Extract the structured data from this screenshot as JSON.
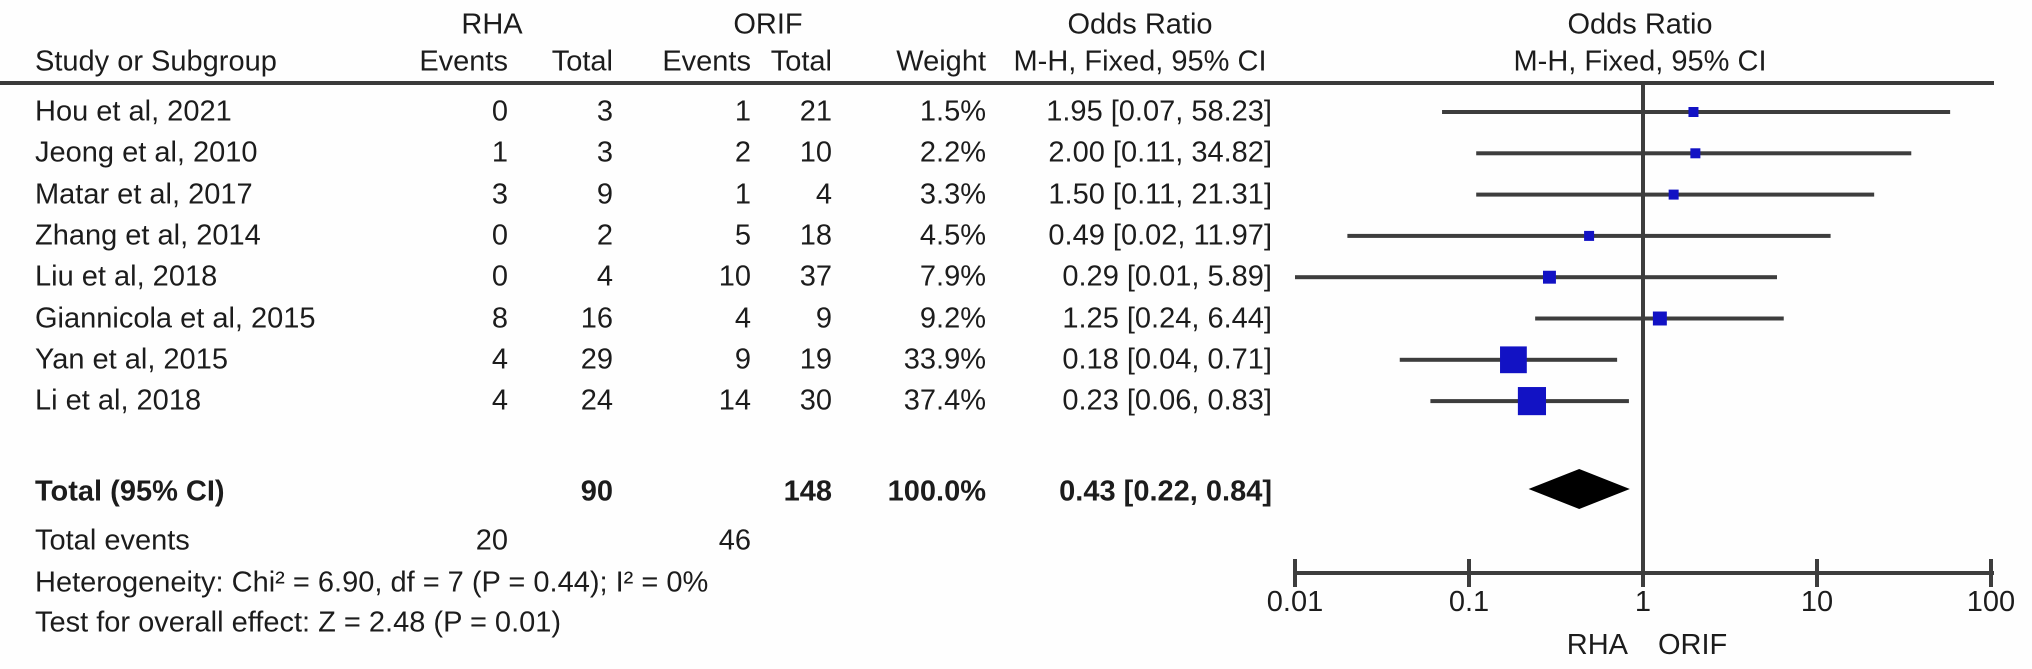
{
  "table": {
    "header": {
      "group1": "RHA",
      "group2": "ORIF",
      "col_study": "Study or Subgroup",
      "col_events1": "Events",
      "col_total1": "Total",
      "col_events2": "Events",
      "col_total2": "Total",
      "col_weight": "Weight",
      "or_title": "Odds Ratio",
      "or_subtitle": "M-H, Fixed, 95% CI"
    },
    "totals": {
      "label": "Total (95% CI)",
      "total1": "90",
      "total2": "148",
      "weight": "100.0%",
      "or_text": "0.43 [0.22, 0.84]",
      "events_label": "Total events",
      "events1": "20",
      "events2": "46"
    },
    "footer": {
      "heterogeneity": "Heterogeneity: Chi² = 6.90, df = 7 (P = 0.44); I² = 0%",
      "overall_effect": "Test for overall effect: Z = 2.48 (P = 0.01)"
    }
  },
  "chart_data": {
    "type": "forest",
    "x_scale": "log",
    "x_range": [
      0.01,
      100
    ],
    "axis_ticks": [
      0.01,
      0.1,
      1,
      10,
      100
    ],
    "axis_labels": [
      "0.01",
      "0.1",
      "1",
      "10",
      "100"
    ],
    "favours_left": "RHA",
    "favours_right": "ORIF",
    "effect_measure": "Odds Ratio, M-H, Fixed, 95% CI",
    "studies": [
      {
        "study": "Hou et al, 2021",
        "rha_events": "0",
        "rha_total": "3",
        "orif_events": "1",
        "orif_total": "21",
        "weight": "1.5%",
        "weight_pct": 1.5,
        "or": 1.95,
        "ci_low": 0.07,
        "ci_high": 58.23,
        "or_text": "1.95 [0.07, 58.23]"
      },
      {
        "study": "Jeong et al, 2010",
        "rha_events": "1",
        "rha_total": "3",
        "orif_events": "2",
        "orif_total": "10",
        "weight": "2.2%",
        "weight_pct": 2.2,
        "or": 2.0,
        "ci_low": 0.11,
        "ci_high": 34.82,
        "or_text": "2.00 [0.11, 34.82]"
      },
      {
        "study": "Matar et al, 2017",
        "rha_events": "3",
        "rha_total": "9",
        "orif_events": "1",
        "orif_total": "4",
        "weight": "3.3%",
        "weight_pct": 3.3,
        "or": 1.5,
        "ci_low": 0.11,
        "ci_high": 21.31,
        "or_text": "1.50 [0.11, 21.31]"
      },
      {
        "study": "Zhang et al, 2014",
        "rha_events": "0",
        "rha_total": "2",
        "orif_events": "5",
        "orif_total": "18",
        "weight": "4.5%",
        "weight_pct": 4.5,
        "or": 0.49,
        "ci_low": 0.02,
        "ci_high": 11.97,
        "or_text": "0.49 [0.02, 11.97]"
      },
      {
        "study": "Liu et al, 2018",
        "rha_events": "0",
        "rha_total": "4",
        "orif_events": "10",
        "orif_total": "37",
        "weight": "7.9%",
        "weight_pct": 7.9,
        "or": 0.29,
        "ci_low": 0.01,
        "ci_high": 5.89,
        "or_text": "0.29 [0.01, 5.89]"
      },
      {
        "study": "Giannicola et al, 2015",
        "rha_events": "8",
        "rha_total": "16",
        "orif_events": "4",
        "orif_total": "9",
        "weight": "9.2%",
        "weight_pct": 9.2,
        "or": 1.25,
        "ci_low": 0.24,
        "ci_high": 6.44,
        "or_text": "1.25 [0.24, 6.44]"
      },
      {
        "study": "Yan et al, 2015",
        "rha_events": "4",
        "rha_total": "29",
        "orif_events": "9",
        "orif_total": "19",
        "weight": "33.9%",
        "weight_pct": 33.9,
        "or": 0.18,
        "ci_low": 0.04,
        "ci_high": 0.71,
        "or_text": "0.18 [0.04, 0.71]"
      },
      {
        "study": "Li et al, 2018",
        "rha_events": "4",
        "rha_total": "24",
        "orif_events": "14",
        "orif_total": "30",
        "weight": "37.4%",
        "weight_pct": 37.4,
        "or": 0.23,
        "ci_low": 0.06,
        "ci_high": 0.83,
        "or_text": "0.23 [0.06, 0.83]"
      }
    ],
    "total": {
      "or": 0.43,
      "ci_low": 0.22,
      "ci_high": 0.84
    },
    "colors": {
      "marker": "#1212c4",
      "diamond": "#000000",
      "line": "#3d3d3d",
      "rule": "#3a3a3a",
      "text": "#1c1c1c"
    }
  }
}
